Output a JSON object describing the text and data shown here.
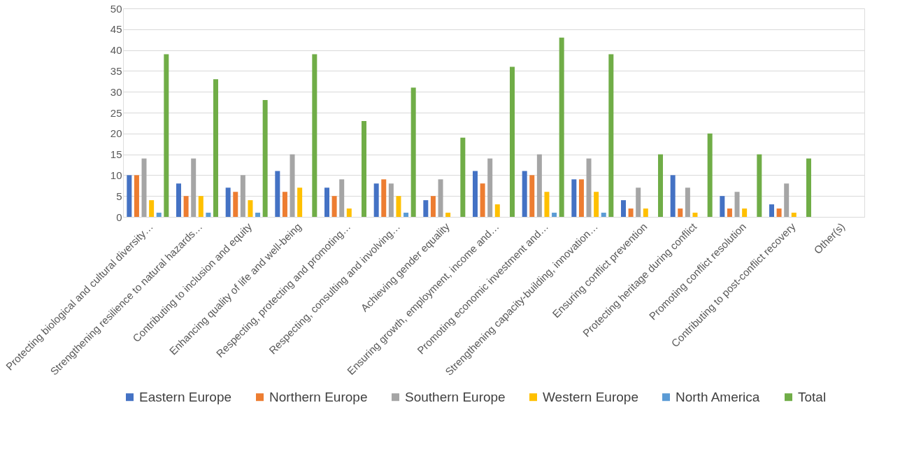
{
  "chart_data": {
    "type": "bar",
    "categories": [
      "Protecting biological and cultural diversity…",
      "Strengthening resilience to natural hazards…",
      "Contributing to inclusion and equity",
      "Enhancing quality of life and well-being",
      "Respecting, protecting and promoting…",
      "Respecting, consulting and involving…",
      "Achieving gender equality",
      "Ensuring growth, employment, income and…",
      "Promoting economic investment and…",
      "Strengthening capacity-building, innovation…",
      "Ensuring conflict prevention",
      "Protecting heritage during conflict",
      "Promoting conflict resolution",
      "Contributing to post-conflict recovery",
      "Other(s)"
    ],
    "series": [
      {
        "name": "Eastern Europe",
        "color": "#4472c4",
        "values": [
          10,
          8,
          7,
          11,
          7,
          8,
          4,
          11,
          11,
          9,
          4,
          10,
          5,
          3,
          0
        ]
      },
      {
        "name": "Northern Europe",
        "color": "#ed7d31",
        "values": [
          10,
          5,
          6,
          6,
          5,
          9,
          5,
          8,
          10,
          9,
          2,
          2,
          2,
          2,
          0
        ]
      },
      {
        "name": "Southern Europe",
        "color": "#a5a5a5",
        "values": [
          14,
          14,
          10,
          15,
          9,
          8,
          9,
          14,
          15,
          14,
          7,
          7,
          6,
          8,
          0
        ]
      },
      {
        "name": "Western Europe",
        "color": "#ffc000",
        "values": [
          4,
          5,
          4,
          7,
          2,
          5,
          1,
          3,
          6,
          6,
          2,
          1,
          2,
          1,
          0
        ]
      },
      {
        "name": "North America",
        "color": "#5b9bd5",
        "values": [
          1,
          1,
          1,
          0,
          0,
          1,
          0,
          0,
          1,
          1,
          0,
          0,
          0,
          0,
          0
        ]
      },
      {
        "name": "Total",
        "color": "#70ad47",
        "values": [
          39,
          33,
          28,
          39,
          23,
          31,
          19,
          36,
          43,
          39,
          15,
          20,
          15,
          14,
          0
        ]
      }
    ],
    "ylim": [
      0,
      50
    ],
    "yticks": [
      0,
      5,
      10,
      15,
      20,
      25,
      30,
      35,
      40,
      45,
      50
    ],
    "grid": "y",
    "legend": "bottom"
  }
}
